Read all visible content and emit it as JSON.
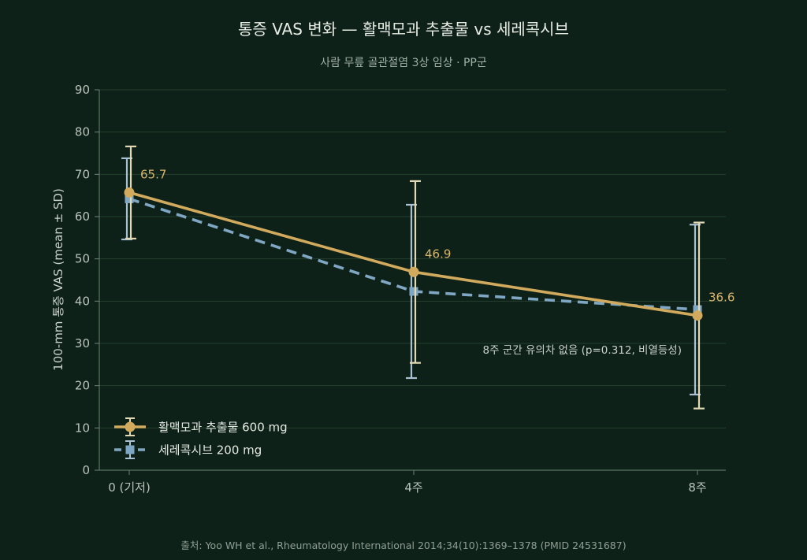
{
  "chart_data": {
    "type": "line",
    "title": "통증 VAS 변화 — 활맥모과 추출물 vs 세레콕시브",
    "subtitle": "사람 무릎 골관절염 3상 임상 · PP군",
    "ylabel": "100-mm 통증 VAS  (mean ± SD)",
    "xlabel": "",
    "categories": [
      "0 (기저)",
      "4주",
      "8주"
    ],
    "ylim": [
      0,
      90
    ],
    "yticks": [
      0,
      10,
      20,
      30,
      40,
      50,
      60,
      70,
      80,
      90
    ],
    "grid": true,
    "legend_position": "bottom-left",
    "series": [
      {
        "name": "활맥모과 추출물 600 mg",
        "values": [
          65.7,
          46.9,
          36.6
        ],
        "sd": [
          10.9,
          21.5,
          22.0
        ],
        "color": "#d2aa5e",
        "line_style": "solid",
        "marker": "circle",
        "data_labels": [
          "65.7",
          "46.9",
          "36.6"
        ]
      },
      {
        "name": "세레콕시브 200 mg",
        "values": [
          64.2,
          42.3,
          38.0
        ],
        "sd": [
          9.6,
          20.5,
          20.1
        ],
        "color": "#7fa7c3",
        "line_style": "dashed",
        "marker": "square"
      }
    ],
    "annotations": [
      {
        "text": "8주 군간 유의차 없음 (p=0.312, 비열등성)",
        "x": "8주",
        "y": 27
      }
    ],
    "source": "출처: Yoo WH et al., Rheumatology International 2014;34(10):1369–1378 (PMID 24531687)"
  }
}
